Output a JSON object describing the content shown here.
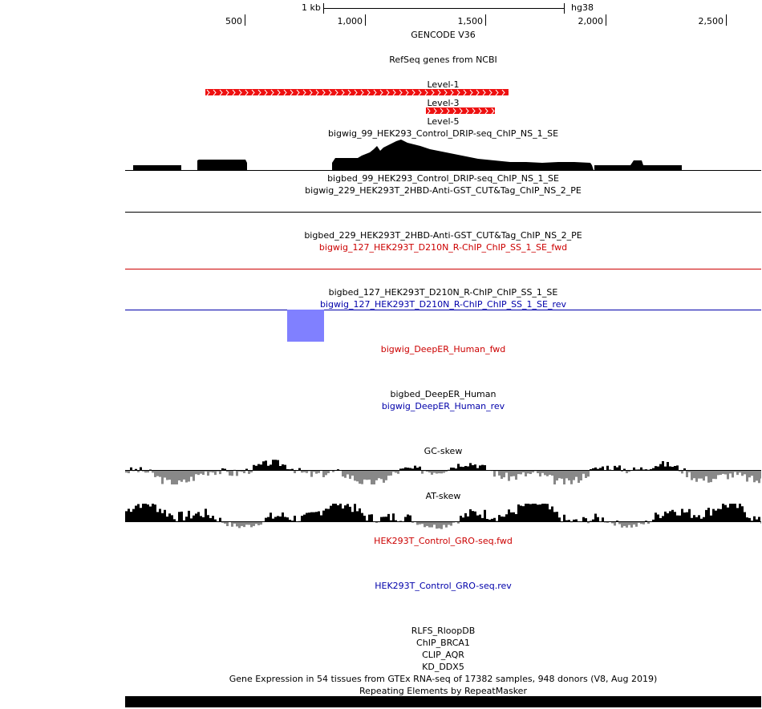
{
  "ruler": {
    "scale_label": "1 kb",
    "assembly": "hg38",
    "ticks": [
      "500",
      "1,000",
      "1,500",
      "2,000",
      "2,500"
    ]
  },
  "tracks": {
    "gencode": "GENCODE V36",
    "refseq": "RefSeq genes from NCBI",
    "level1": "Level-1",
    "level3": "Level-3",
    "level5": "Level-5",
    "bigwig_99": "bigwig_99_HEK293_Control_DRIP-seq_ChIP_NS_1_SE",
    "bigbed_99": "bigbed_99_HEK293_Control_DRIP-seq_ChIP_NS_1_SE",
    "bigwig_229": "bigwig_229_HEK293T_2HBD-Anti-GST_CUT&Tag_ChIP_NS_2_PE",
    "bigbed_229": "bigbed_229_HEK293T_2HBD-Anti-GST_CUT&Tag_ChIP_NS_2_PE",
    "bigwig_127_fwd": "bigwig_127_HEK293T_D210N_R-ChIP_ChIP_SS_1_SE_fwd",
    "bigbed_127": "bigbed_127_HEK293T_D210N_R-ChIP_ChIP_SS_1_SE",
    "bigwig_127_rev": "bigwig_127_HEK293T_D210N_R-ChIP_ChIP_SS_1_SE_rev",
    "deeper_fwd": "bigwig_DeepER_Human_fwd",
    "deeper_bed": "bigbed_DeepER_Human",
    "deeper_rev": "bigwig_DeepER_Human_rev",
    "gc_skew": "GC-skew",
    "at_skew": "AT-skew",
    "gro_fwd": "HEK293T_Control_GRO-seq.fwd",
    "gro_rev": "HEK293T_Control_GRO-seq.rev",
    "rlfs": "RLFS_RloopDB",
    "chip_brca1": "ChIP_BRCA1",
    "clip_aqr": "CLIP_AQR",
    "kd_ddx5": "KD_DDX5",
    "gtex": "Gene Expression in 54 tissues from GTEx RNA-seq of 17382 samples, 948 donors (V8, Aug 2019)",
    "repeatmasker": "Repeating Elements by RepeatMasker"
  },
  "colors": {
    "fwd": "#cc0000",
    "rev": "#0000aa",
    "gene": "#ee1111",
    "deeper_block": "#8080ff",
    "skew_neg": "#888888"
  }
}
